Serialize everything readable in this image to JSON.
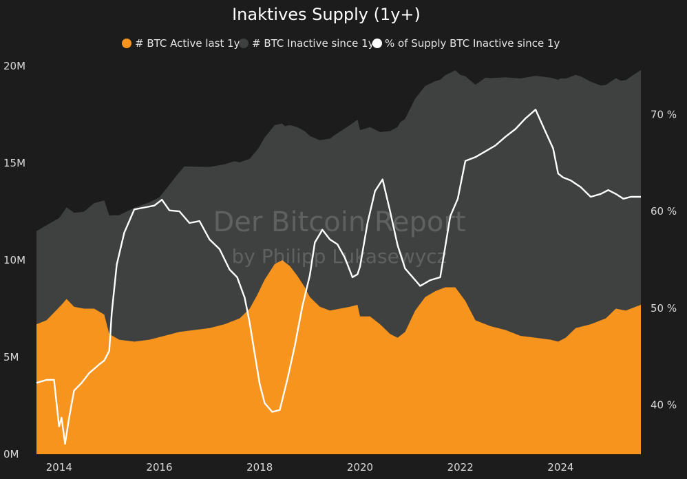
{
  "chart_data": {
    "type": "area",
    "title": "Inaktives Supply (1y+)",
    "legend_placement": "top-center",
    "grid": false,
    "watermark": [
      "Der Bitcoin Report",
      "by Philipp Lukasewycz"
    ],
    "x_ticks": [
      "2014",
      "2016",
      "2018",
      "2020",
      "2022",
      "2024"
    ],
    "x_range": [
      2013.55,
      2025.6
    ],
    "y_left": {
      "ticks": [
        "0M",
        "5M",
        "10M",
        "15M",
        "20M"
      ],
      "range": [
        0,
        20000000
      ]
    },
    "y_right": {
      "ticks": [
        "40 %",
        "50 %",
        "60 %",
        "70 %"
      ],
      "range": [
        35,
        75
      ]
    },
    "colors": {
      "active": "#f7941d",
      "inactive": "#3f4040",
      "percent": "#ffffff",
      "background": "#1c1c1c"
    },
    "series": [
      {
        "name": "# BTC Active last 1y",
        "axis": "left",
        "type": "area",
        "x": [
          2013.55,
          2013.75,
          2013.9,
          2014.05,
          2014.15,
          2014.3,
          2014.5,
          2014.7,
          2014.9,
          2015.0,
          2015.2,
          2015.5,
          2015.8,
          2016.1,
          2016.4,
          2016.7,
          2017.0,
          2017.3,
          2017.6,
          2017.8,
          2017.95,
          2018.1,
          2018.3,
          2018.45,
          2018.6,
          2018.75,
          2018.9,
          2019.0,
          2019.2,
          2019.4,
          2019.6,
          2019.8,
          2019.95,
          2020.0,
          2020.2,
          2020.4,
          2020.6,
          2020.75,
          2020.9,
          2021.1,
          2021.3,
          2021.5,
          2021.7,
          2021.9,
          2022.1,
          2022.3,
          2022.6,
          2022.9,
          2023.2,
          2023.5,
          2023.8,
          2023.95,
          2024.1,
          2024.3,
          2024.6,
          2024.9,
          2025.1,
          2025.3,
          2025.6
        ],
        "values": [
          6700000,
          6900000,
          7300000,
          7700000,
          8000000,
          7600000,
          7500000,
          7500000,
          7200000,
          6200000,
          5900000,
          5800000,
          5900000,
          6100000,
          6300000,
          6400000,
          6500000,
          6700000,
          7000000,
          7500000,
          8200000,
          9000000,
          9800000,
          10000000,
          9700000,
          9200000,
          8600000,
          8100000,
          7600000,
          7400000,
          7500000,
          7600000,
          7700000,
          7100000,
          7100000,
          6700000,
          6200000,
          6000000,
          6300000,
          7400000,
          8100000,
          8400000,
          8600000,
          8600000,
          7900000,
          6900000,
          6600000,
          6400000,
          6100000,
          6000000,
          5900000,
          5800000,
          6000000,
          6500000,
          6700000,
          7000000,
          7500000,
          7400000,
          7700000
        ]
      },
      {
        "name": "# BTC Inactive since 1y",
        "axis": "left",
        "type": "area",
        "x": [
          2013.55,
          2013.75,
          2014.0,
          2014.5,
          2015.0,
          2015.5,
          2016.0,
          2016.5,
          2017.0,
          2017.5,
          2018.0,
          2018.5,
          2019.0,
          2019.5,
          2020.0,
          2020.4,
          2020.8,
          2021.2,
          2021.6,
          2022.0,
          2022.5,
          2023.0,
          2023.5,
          2024.0,
          2024.4,
          2024.8,
          2025.2,
          2025.6
        ],
        "values": [
          4800000,
          4900000,
          4600000,
          5000000,
          6100000,
          6900000,
          7200000,
          8500000,
          8300000,
          8200000,
          7400000,
          7000000,
          8300000,
          9000000,
          9600000,
          9900000,
          11000000,
          10900000,
          10800000,
          11300000,
          12700000,
          13100000,
          13500000,
          13500000,
          12900000,
          12100000,
          11800000,
          12100000
        ]
      },
      {
        "name": "% of Supply BTC Inactive since 1y",
        "axis": "right",
        "type": "line",
        "x": [
          2013.55,
          2013.75,
          2013.9,
          2014.0,
          2014.05,
          2014.12,
          2014.2,
          2014.3,
          2014.45,
          2014.6,
          2014.8,
          2014.9,
          2015.0,
          2015.05,
          2015.15,
          2015.3,
          2015.5,
          2015.7,
          2015.9,
          2016.05,
          2016.2,
          2016.4,
          2016.6,
          2016.8,
          2017.0,
          2017.2,
          2017.4,
          2017.55,
          2017.7,
          2017.8,
          2017.9,
          2018.0,
          2018.1,
          2018.25,
          2018.4,
          2018.55,
          2018.7,
          2018.85,
          2019.0,
          2019.1,
          2019.25,
          2019.4,
          2019.55,
          2019.7,
          2019.85,
          2019.95,
          2020.0,
          2020.15,
          2020.3,
          2020.45,
          2020.6,
          2020.75,
          2020.9,
          2021.05,
          2021.2,
          2021.4,
          2021.6,
          2021.8,
          2021.95,
          2022.1,
          2022.3,
          2022.5,
          2022.7,
          2022.9,
          2023.1,
          2023.3,
          2023.5,
          2023.7,
          2023.85,
          2023.95,
          2024.05,
          2024.2,
          2024.4,
          2024.6,
          2024.8,
          2024.95,
          2025.1,
          2025.25,
          2025.4,
          2025.6
        ],
        "values": [
          42.3,
          42.6,
          42.6,
          37.8,
          38.7,
          36.0,
          38.7,
          41.5,
          42.3,
          43.3,
          44.2,
          44.6,
          45.6,
          49.5,
          54.5,
          57.8,
          60.2,
          60.4,
          60.6,
          61.2,
          60.1,
          60.0,
          58.8,
          59.0,
          57.1,
          56.1,
          54.0,
          53.2,
          51.1,
          48.5,
          45.3,
          42.2,
          40.2,
          39.3,
          39.5,
          42.6,
          46.1,
          50.2,
          53.4,
          56.8,
          58.1,
          57.1,
          56.6,
          55.2,
          53.2,
          53.5,
          54.3,
          58.8,
          62.1,
          63.3,
          60.0,
          56.5,
          54.1,
          53.2,
          52.3,
          52.9,
          53.2,
          59.5,
          61.3,
          65.2,
          65.6,
          66.2,
          66.8,
          67.7,
          68.5,
          69.6,
          70.5,
          68.2,
          66.5,
          63.9,
          63.5,
          63.2,
          62.5,
          61.5,
          61.8,
          62.2,
          61.8,
          61.3,
          61.5,
          61.5
        ]
      }
    ]
  },
  "legend": [
    {
      "label": "# BTC Active last 1y",
      "color": "#f7941d"
    },
    {
      "label": "# BTC Inactive since 1y",
      "color": "#3f4040"
    },
    {
      "label": "% of Supply BTC Inactive since 1y",
      "color": "#ffffff"
    }
  ]
}
